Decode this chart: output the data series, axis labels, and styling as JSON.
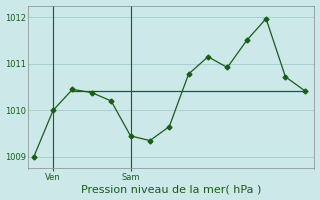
{
  "title": "Pression niveau de la mer( hPa )",
  "background_color": "#cce8e8",
  "grid_color": "#aacece",
  "line_color": "#1a5c1a",
  "ylim": [
    1008.75,
    1012.25
  ],
  "yticks": [
    1009,
    1010,
    1011,
    1012
  ],
  "x_values": [
    0,
    1,
    2,
    3,
    4,
    5,
    6,
    7,
    8,
    9,
    10,
    11,
    12,
    13,
    14
  ],
  "y_values": [
    1009.0,
    1010.0,
    1010.45,
    1010.38,
    1010.2,
    1009.45,
    1009.35,
    1009.65,
    1010.78,
    1011.15,
    1010.92,
    1011.5,
    1011.97,
    1010.72,
    1010.42
  ],
  "ref_line_y": 1010.42,
  "ref_line_x_start": 2.0,
  "ref_line_x_end": 14.0,
  "ven_x": 1.0,
  "sam_x": 5.0,
  "vline_ven_x": 1.0,
  "vline_sam_x": 5.0,
  "xlabel_fontsize": 8,
  "tick_fontsize": 6,
  "marker_size": 2.5,
  "xlim": [
    -0.3,
    14.5
  ]
}
